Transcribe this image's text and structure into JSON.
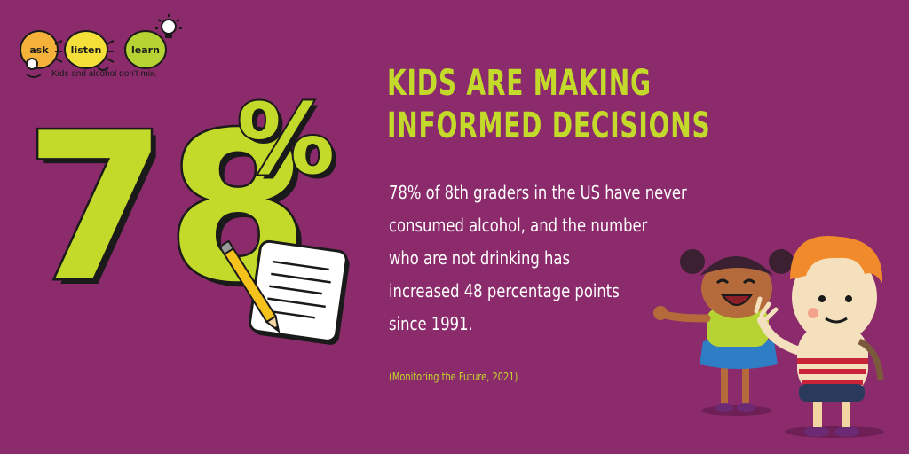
{
  "logo": {
    "word_ask": "ask",
    "word_listen": "listen",
    "word_learn": "learn",
    "tagline": "Kids and alcohol don't mix.",
    "accent_colors": {
      "ask": "#f4b23a",
      "listen": "#f5e03a",
      "learn": "#b6d334"
    }
  },
  "hero": {
    "number": "78",
    "percent": "%",
    "color": "#c4da2a"
  },
  "headline": {
    "line1": "KIDS ARE MAKING",
    "line2": "INFORMED DECISIONS"
  },
  "body": {
    "lines": [
      "78% of 8th graders in the US have never",
      "consumed alcohol, and the number",
      "who are not drinking has",
      "increased 48 percentage points",
      "since 1991."
    ]
  },
  "source": "(Monitoring the Future, 2021)",
  "icons": [
    "lightbulb-icon",
    "paper-pencil-icon",
    "kids-illustration"
  ],
  "colors": {
    "background": "#8b2b6b",
    "accent": "#c4da2a",
    "text": "#ffffff"
  }
}
